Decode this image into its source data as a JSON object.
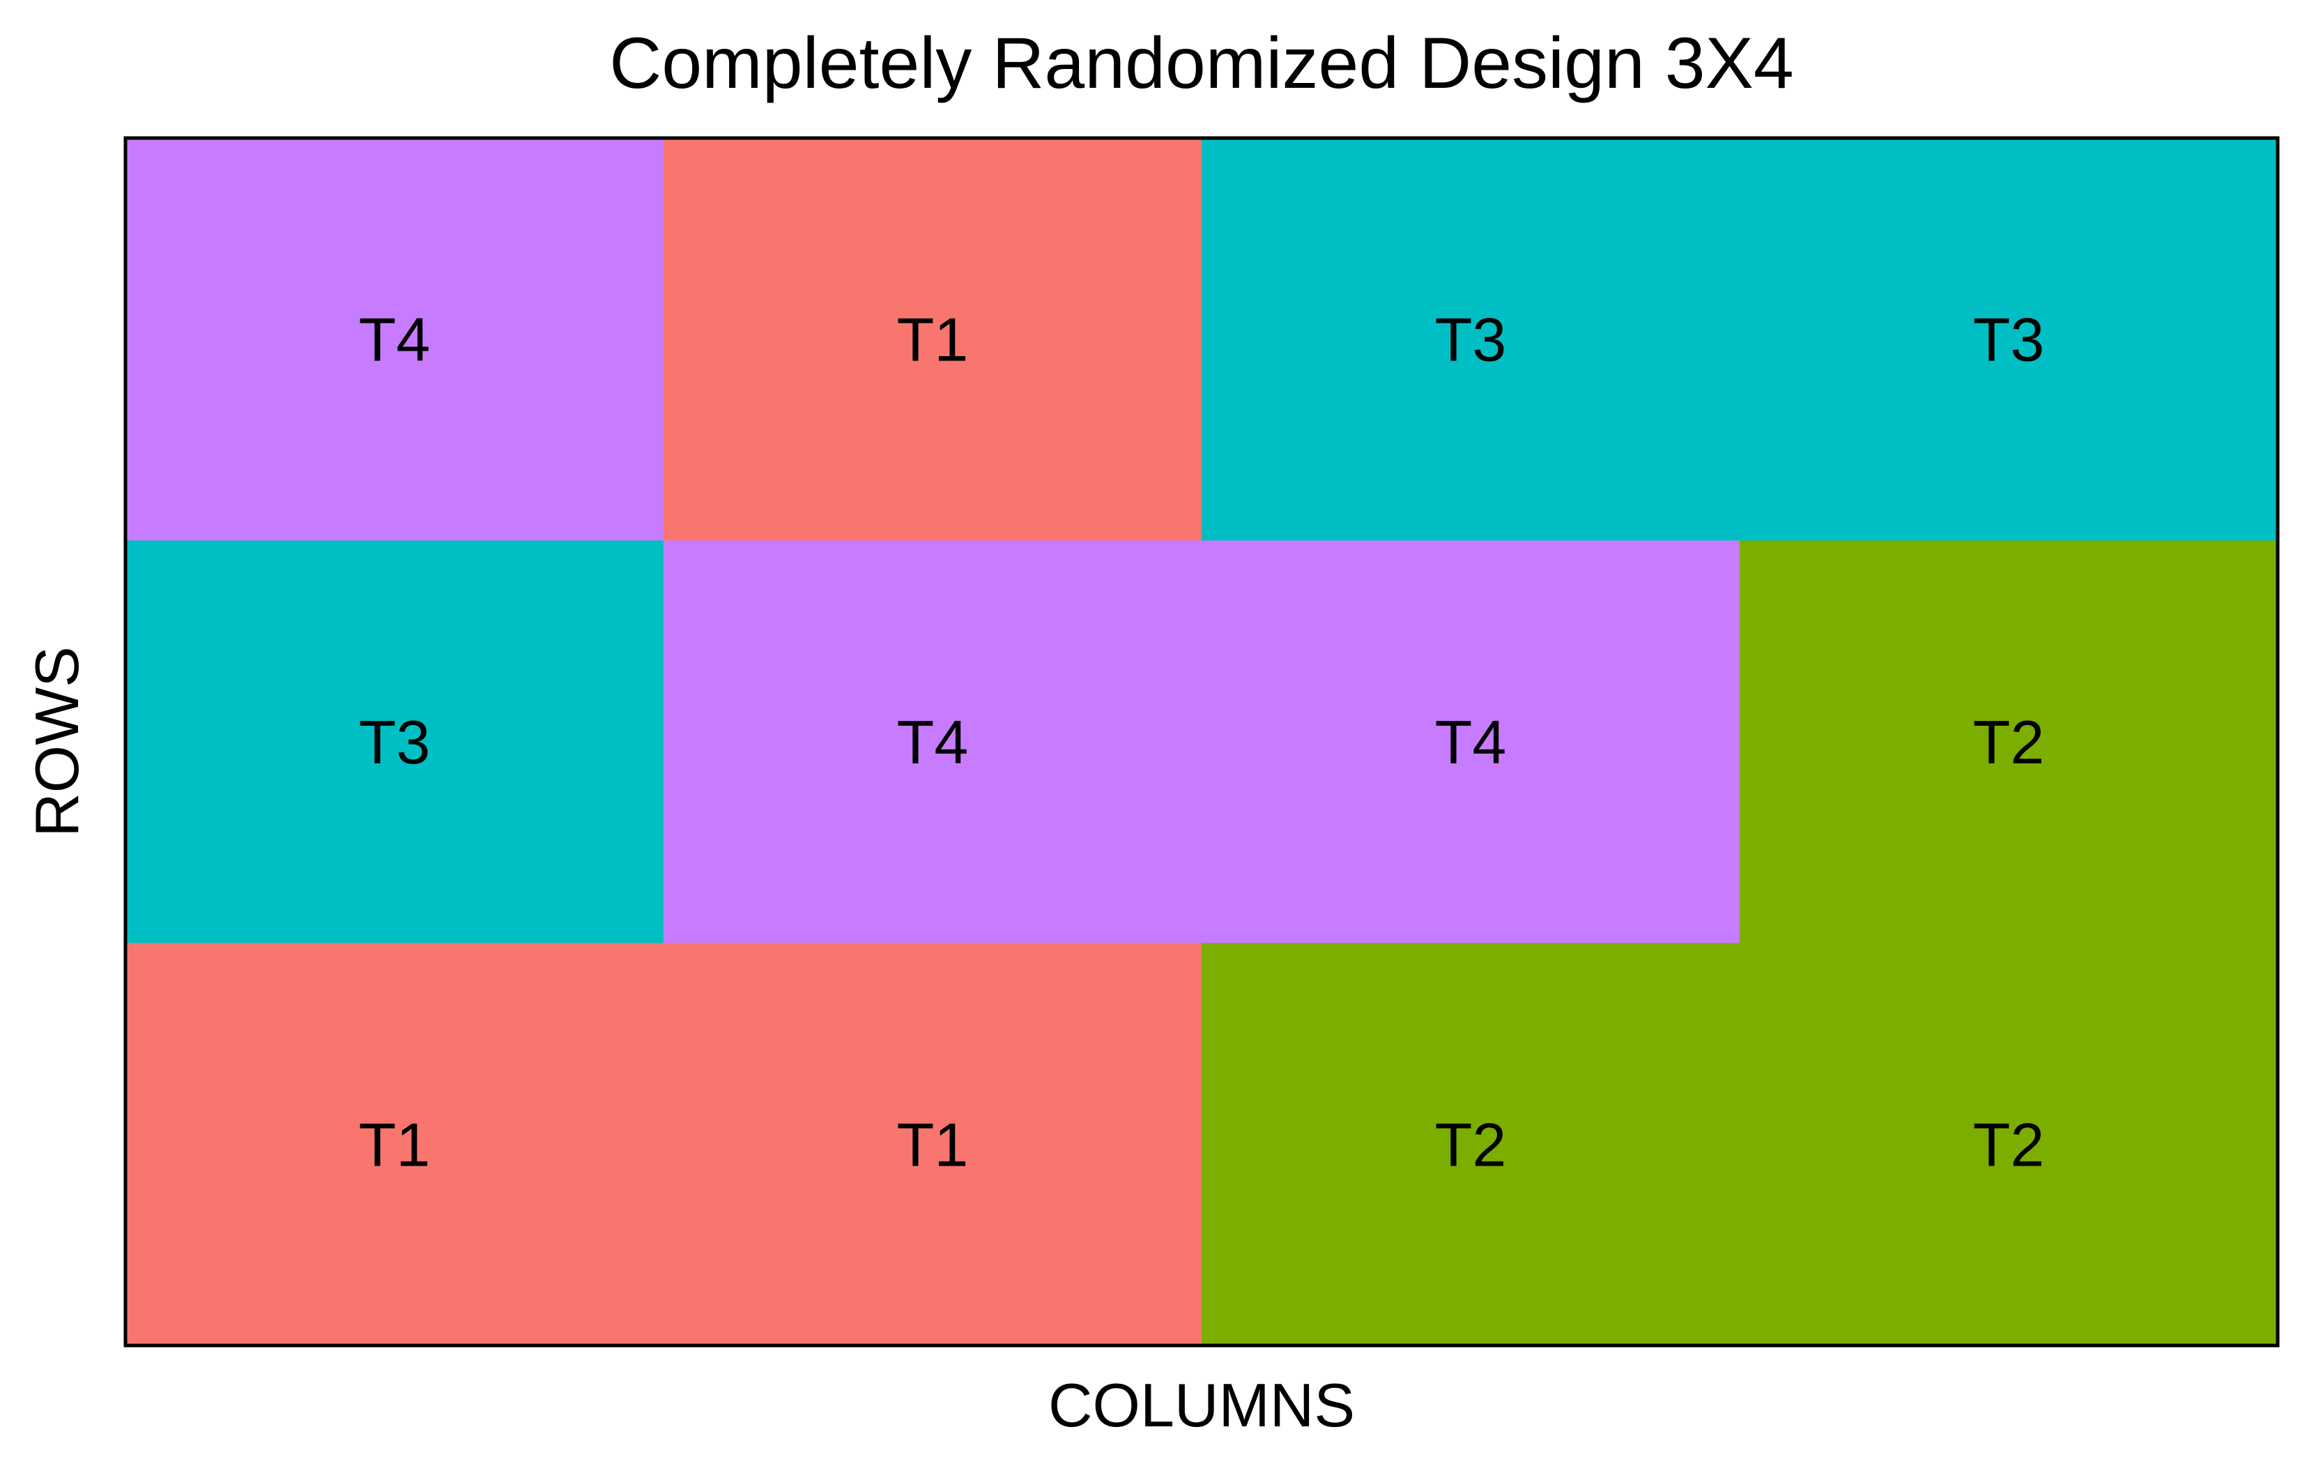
{
  "chart_data": {
    "type": "heatmap",
    "title": "Completely Randomized Design 3X4",
    "xlabel": "COLUMNS",
    "ylabel": "ROWS",
    "n_rows": 3,
    "n_cols": 4,
    "grid": false,
    "legend": "none",
    "treatment_colors": {
      "T1": "#F8766D",
      "T2": "#7CAE00",
      "T3": "#00BFC4",
      "T4": "#C77CFF"
    },
    "cells": [
      [
        "T4",
        "T1",
        "T3",
        "T3"
      ],
      [
        "T3",
        "T4",
        "T4",
        "T2"
      ],
      [
        "T1",
        "T1",
        "T2",
        "T2"
      ]
    ]
  }
}
